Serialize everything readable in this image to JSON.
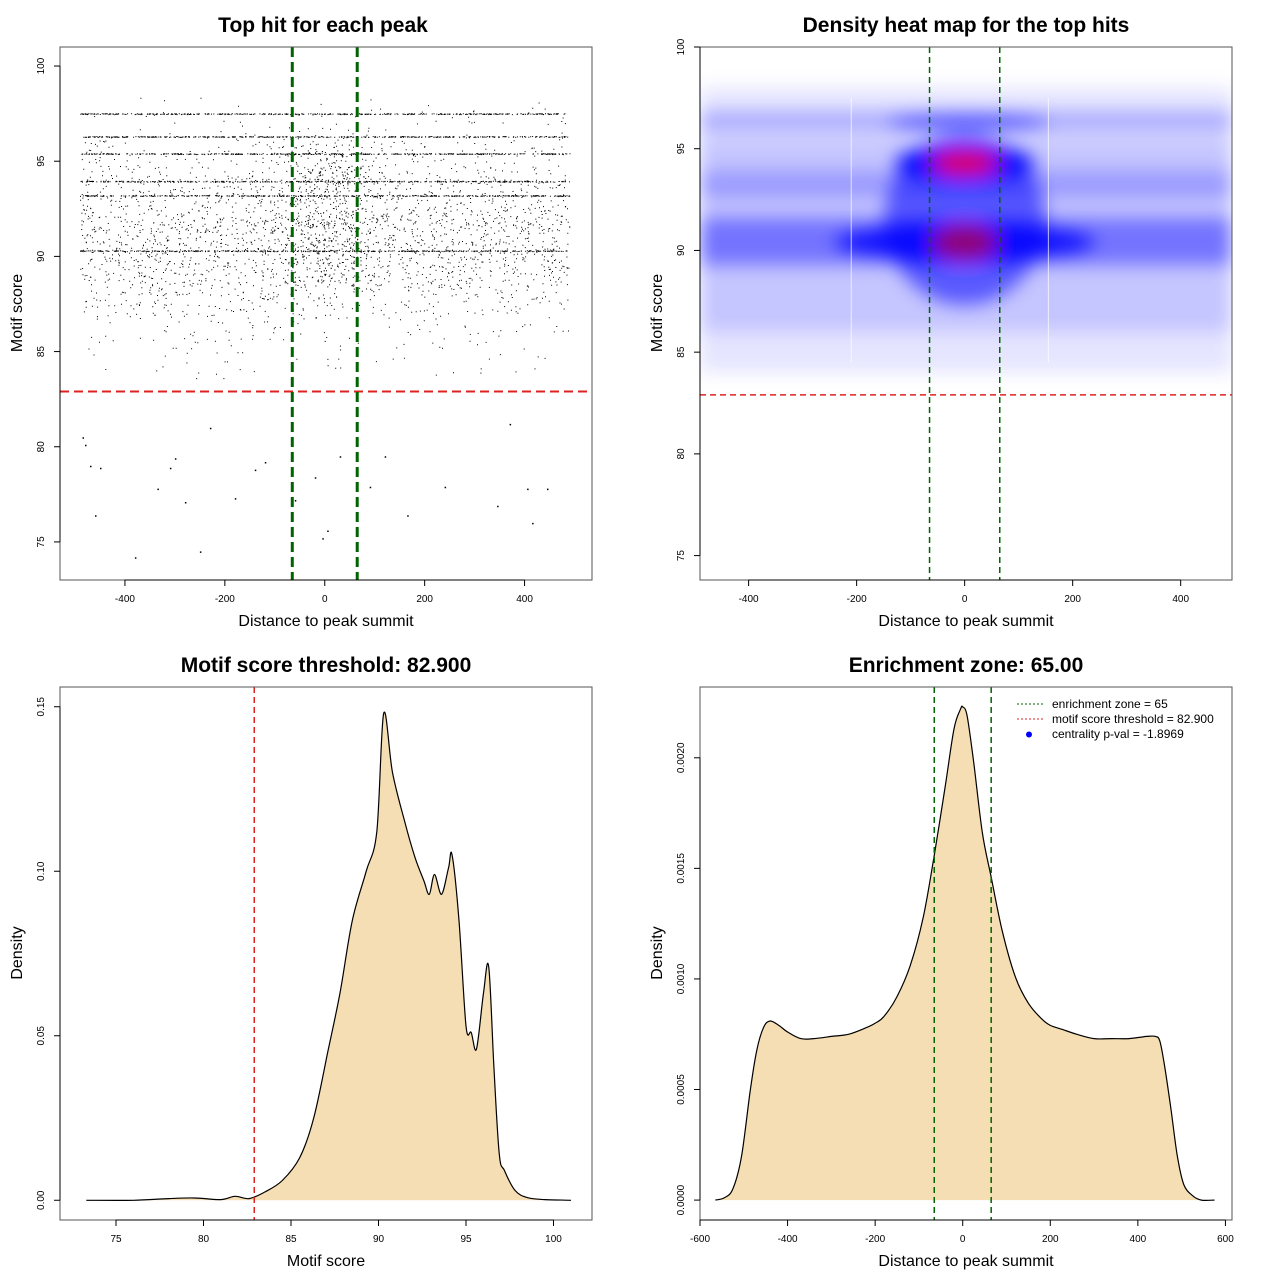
{
  "chart_data": [
    {
      "type": "scatter",
      "title": "Top hit for each peak",
      "xlabel": "Distance to peak summit",
      "ylabel": "Motif score",
      "xlim": [
        -530,
        535
      ],
      "ylim": [
        73,
        101
      ],
      "xticks": [
        -400,
        -200,
        0,
        200,
        400
      ],
      "yticks": [
        75,
        80,
        85,
        90,
        95,
        100
      ],
      "grid": false,
      "colors": {
        "points": "#000000",
        "threshold": "#dd2222",
        "zone": "#006400"
      },
      "points_summary": {
        "x_range": [
          -490,
          490
        ],
        "dense_y_range": [
          84,
          98
        ],
        "mode_y": 90.3,
        "sparse_points": [
          [
            -485,
            80.5
          ],
          [
            -480,
            80.1
          ],
          [
            -470,
            79
          ],
          [
            -460,
            76.4
          ],
          [
            -450,
            78.9
          ],
          [
            -380,
            74.2
          ],
          [
            -335,
            77.8
          ],
          [
            -310,
            78.9
          ],
          [
            -300,
            79.4
          ],
          [
            -280,
            77.1
          ],
          [
            -250,
            74.5
          ],
          [
            -230,
            81
          ],
          [
            -180,
            77.3
          ],
          [
            -140,
            78.8
          ],
          [
            -120,
            79.2
          ],
          [
            -60,
            77.2
          ],
          [
            -20,
            78.4
          ],
          [
            5,
            75.6
          ],
          [
            -5,
            75.2
          ],
          [
            30,
            79.5
          ],
          [
            90,
            77.9
          ],
          [
            120,
            79.5
          ],
          [
            165,
            76.4
          ],
          [
            240,
            77.9
          ],
          [
            345,
            76.9
          ],
          [
            370,
            81.2
          ],
          [
            405,
            77.8
          ],
          [
            415,
            76
          ],
          [
            445,
            77.8
          ]
        ]
      },
      "hlines": [
        82.9
      ],
      "vlines": [
        -65,
        65
      ]
    },
    {
      "type": "heatmap",
      "title": "Density heat map for the top hits",
      "xlabel": "Distance to peak summit",
      "ylabel": "Motif score",
      "xlim": [
        -490,
        495
      ],
      "ylim": [
        73.8,
        100
      ],
      "xticks": [
        -400,
        -200,
        0,
        200,
        400
      ],
      "yticks": [
        75,
        80,
        85,
        90,
        95,
        100
      ],
      "colors": {
        "low": "#ffffff",
        "mid": "#0000ff",
        "high": "#ff0000",
        "threshold": "#dd2222",
        "zone": "#006400"
      },
      "density_peaks": [
        [
          0,
          94.3
        ],
        [
          0,
          90.4
        ]
      ],
      "hlines": [
        82.9
      ],
      "vlines": [
        -65,
        65
      ]
    },
    {
      "type": "area",
      "title": "Motif score threshold: 82.900",
      "xlabel": "Motif score",
      "ylabel": "Density",
      "xlim": [
        71.8,
        102.2
      ],
      "ylim": [
        -0.006,
        0.156
      ],
      "xticks": [
        75,
        80,
        85,
        90,
        95,
        100
      ],
      "yticks": [
        0.0,
        0.05,
        0.1,
        0.15
      ],
      "ytick_labels": [
        "0.00",
        "0.05",
        "0.10",
        "0.15"
      ],
      "fill": "#f5deb3",
      "vlines": [
        82.9
      ],
      "vline_color": "#dd2222",
      "x": [
        73.3,
        76,
        78,
        79.5,
        81,
        81.8,
        82.6,
        83.5,
        84.5,
        85.5,
        86.3,
        87.1,
        87.8,
        88.5,
        89.3,
        89.9,
        90.3,
        90.8,
        91.5,
        92.1,
        92.6,
        92.9,
        93.2,
        93.6,
        94,
        94.2,
        94.6,
        95,
        95.3,
        95.6,
        96,
        96.3,
        96.6,
        96.9,
        97.2,
        97.8,
        98.5,
        99.5,
        101
      ],
      "y": [
        0.0,
        0.0,
        0.0005,
        0.0007,
        0.0002,
        0.0012,
        0.0005,
        0.0025,
        0.006,
        0.013,
        0.025,
        0.045,
        0.063,
        0.085,
        0.1,
        0.112,
        0.148,
        0.13,
        0.115,
        0.104,
        0.097,
        0.093,
        0.099,
        0.093,
        0.101,
        0.105,
        0.085,
        0.053,
        0.051,
        0.046,
        0.063,
        0.071,
        0.04,
        0.014,
        0.009,
        0.003,
        0.0008,
        0.0002,
        0.0
      ]
    },
    {
      "type": "area",
      "title": "Enrichment zone: 65.00",
      "xlabel": "Distance to peak summit",
      "ylabel": "Density",
      "xlim": [
        -600,
        615
      ],
      "ylim": [
        -9e-05,
        0.00232
      ],
      "xticks": [
        -600,
        -400,
        -200,
        0,
        200,
        400,
        600
      ],
      "yticks": [
        0.0,
        0.0005,
        0.001,
        0.0015,
        0.002
      ],
      "ytick_labels": [
        "0.0000",
        "0.0005",
        "0.0010",
        "0.0015",
        "0.0020"
      ],
      "fill": "#f5deb3",
      "vlines": [
        -65,
        65
      ],
      "vline_color": "#006400",
      "legend_position": "top-right",
      "legend": [
        {
          "label": "enrichment zone = 65",
          "style": "dotted",
          "color": "#006400"
        },
        {
          "label": "motif score threshold = 82.900",
          "style": "dotted",
          "color": "#dd2222"
        },
        {
          "label": "centrality p-val = -1.8969",
          "style": "point",
          "color": "#0000ff"
        }
      ],
      "x": [
        -565,
        -545,
        -525,
        -505,
        -485,
        -470,
        -455,
        -440,
        -420,
        -400,
        -370,
        -340,
        -300,
        -260,
        -220,
        -200,
        -180,
        -150,
        -120,
        -90,
        -65,
        -40,
        -20,
        -5,
        0,
        10,
        25,
        45,
        65,
        90,
        120,
        150,
        180,
        200,
        230,
        260,
        300,
        340,
        380,
        420,
        440,
        450,
        460,
        475,
        490,
        505,
        525,
        545,
        575
      ],
      "y": [
        0.0,
        1e-05,
        5e-05,
        0.0002,
        0.0005,
        0.00068,
        0.00078,
        0.00081,
        0.00079,
        0.00076,
        0.00073,
        0.00073,
        0.00074,
        0.00075,
        0.00078,
        0.0008,
        0.00083,
        0.00092,
        0.00106,
        0.00128,
        0.00156,
        0.00187,
        0.00213,
        0.00222,
        0.00223,
        0.00219,
        0.00198,
        0.00166,
        0.00146,
        0.00122,
        0.00101,
        0.00089,
        0.00082,
        0.00079,
        0.00077,
        0.00075,
        0.00073,
        0.00073,
        0.00073,
        0.00074,
        0.00074,
        0.00072,
        0.00062,
        0.00042,
        0.0002,
        7e-05,
        2e-05,
        0.0,
        0.0
      ]
    }
  ]
}
